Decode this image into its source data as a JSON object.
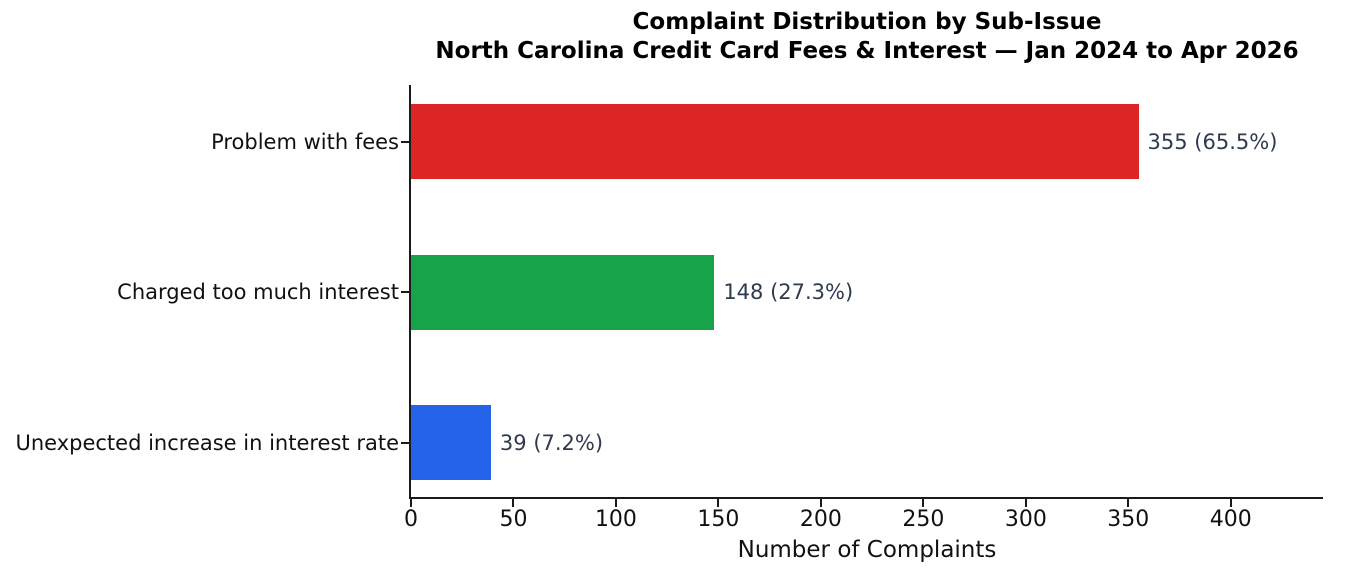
{
  "chart_data": {
    "type": "bar",
    "orientation": "horizontal",
    "title": "Complaint Distribution by Sub-Issue",
    "subtitle": "North Carolina Credit Card Fees & Interest — Jan 2024 to Apr 2026",
    "categories": [
      "Problem with fees",
      "Charged too much interest",
      "Unexpected increase in interest rate"
    ],
    "values": [
      355,
      148,
      39
    ],
    "percentages": [
      65.5,
      27.3,
      7.2
    ],
    "annotations": [
      "355 (65.5%)",
      "148 (27.3%)",
      "39 (7.2%)"
    ],
    "bar_colors": [
      "#dc2626",
      "#16a34a",
      "#2563eb"
    ],
    "xlabel": "Number of Complaints",
    "xlim": [
      0,
      445
    ],
    "xticks": [
      0,
      50,
      100,
      150,
      200,
      250,
      300,
      350,
      400
    ],
    "grid": false,
    "background_color": "#ffffff",
    "annotation_color": "#2e3b4e",
    "axis_color": "#1a1a1a",
    "title_color": "#000000"
  }
}
